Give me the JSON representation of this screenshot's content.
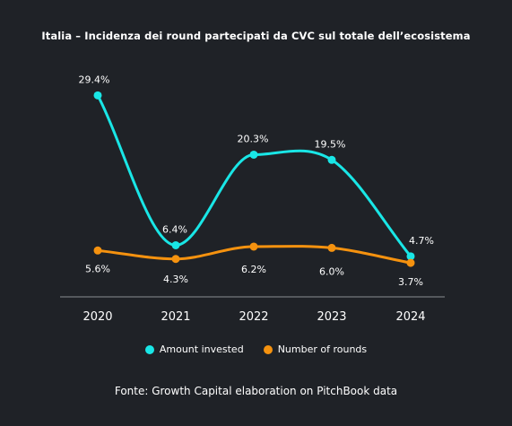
{
  "colors": {
    "background": "#1f2227",
    "amount": "#19e6e6",
    "rounds": "#f5920f",
    "axis": "#8a8d92"
  },
  "chart_data": {
    "type": "line",
    "title": "Italia – Incidenza dei round partecipati da CVC sul totale dell’ecosistema",
    "categories": [
      "2020",
      "2021",
      "2022",
      "2023",
      "2024"
    ],
    "series": [
      {
        "name": "Amount invested",
        "values": [
          29.4,
          6.4,
          20.3,
          19.5,
          4.7
        ],
        "labels": [
          "29.4%",
          "6.4%",
          "20.3%",
          "19.5%",
          "4.7%"
        ]
      },
      {
        "name": "Number of rounds",
        "values": [
          5.6,
          4.3,
          6.2,
          6.0,
          3.7
        ],
        "labels": [
          "5.6%",
          "4.3%",
          "6.2%",
          "6.0%",
          "3.7%"
        ]
      }
    ],
    "ylim": [
      0,
      30
    ],
    "grid": false,
    "legend_position": "bottom"
  },
  "source": "Fonte: Growth Capital elaboration on PitchBook data"
}
